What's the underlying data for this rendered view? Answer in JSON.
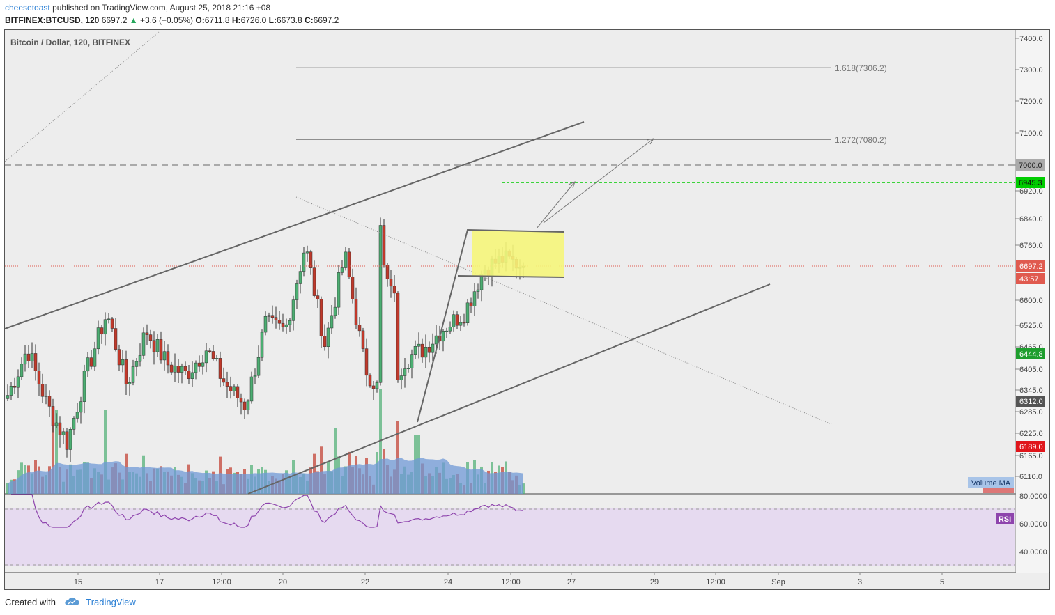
{
  "header": {
    "user": "cheesetoast",
    "published": "published on TradingView.com, August 25, 2018 21:16 +08",
    "symbol": "BITFINEX:BTCUSD, 120",
    "last": "6697.2",
    "arrow": "▲",
    "change": "+3.6 (+0.05%)",
    "o_label": "O:",
    "o_value": "6711.8",
    "h_label": "H:",
    "h_value": "6726.0",
    "l_label": "L:",
    "l_value": "6673.8",
    "c_label": "C:",
    "c_value": "6697.2"
  },
  "footer": {
    "created_with": "Created with",
    "brand": "TradingView"
  },
  "colors": {
    "up": "#4cae72",
    "down": "#c0392b",
    "volume_ma": "#6f98d6",
    "rsi": "#8e44ad",
    "rsi_band": "#e4d7ef",
    "highlight": "#f5f57a",
    "target": "#00cc00",
    "price_line": "#e05a4f"
  },
  "chart_data": {
    "type": "candlestick",
    "title": "Bitcoin / Dollar, 120, BITFINEX",
    "price_axis": {
      "range": [
        6070,
        7430
      ],
      "ticks": [
        "7400.0",
        "7300.0",
        "7200.0",
        "7100.0",
        "7000.0",
        "6920.0",
        "6840.0",
        "6760.0",
        "6600.0",
        "6525.0",
        "6465.0",
        "6405.0",
        "6345.0",
        "6285.0",
        "6225.0",
        "6165.0",
        "6110.0"
      ]
    },
    "time_axis": {
      "ticks": [
        "15",
        "17",
        "12:00",
        "20",
        "22",
        "24",
        "12:00",
        "27",
        "29",
        "12:00",
        "Sep",
        "3",
        "5"
      ]
    },
    "series": [
      {
        "name": "BTCUSD",
        "ohlc_anchor_closes": [
          6330,
          6460,
          6300,
          6200,
          6400,
          6560,
          6360,
          6510,
          6420,
          6390,
          6460,
          6360,
          6300,
          6530,
          6510,
          6760,
          6470,
          6730,
          6410,
          6320,
          6430,
          6460,
          6520,
          6560,
          6690,
          6720,
          6697.2
        ]
      }
    ],
    "fib_levels": [
      {
        "label": "1.618(7306.2)",
        "value": 7306.2
      },
      {
        "label": "1.272(7080.2)",
        "value": 7080.2
      }
    ],
    "horizontal_levels": [
      {
        "label": "7000.0",
        "value": 7000.0
      },
      {
        "label": "6945.3",
        "value": 6945.3
      },
      {
        "label": "6697.2",
        "value": 6697.2
      }
    ],
    "price_labels": [
      {
        "label": "6697.2",
        "value": 6697.2,
        "kind": "last"
      },
      {
        "label": "43:57",
        "value": 6657,
        "kind": "countdown"
      },
      {
        "label": "6444.8",
        "value": 6444.8,
        "kind": "green"
      },
      {
        "label": "6312.0",
        "value": 6312.0,
        "kind": "dark"
      },
      {
        "label": "6189.0",
        "value": 6189.0,
        "kind": "red"
      }
    ],
    "volume_label": "Volume MA",
    "volume_label_behind": "Volume",
    "rsi": {
      "label": "RSI",
      "ticks": [
        "80.0000",
        "60.0000",
        "40.0000"
      ],
      "range": [
        30,
        88
      ],
      "band": [
        30,
        70
      ]
    }
  }
}
